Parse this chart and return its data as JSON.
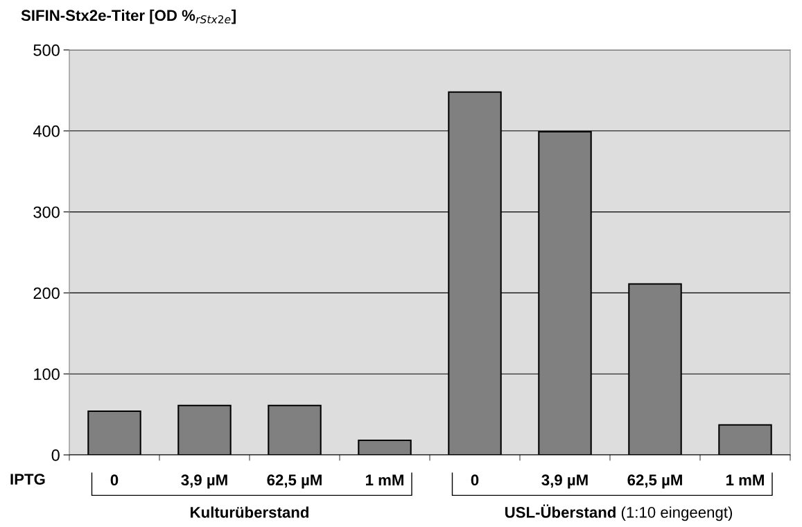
{
  "chart_data": {
    "type": "bar",
    "title": "SIFIN-Stx2e-Titer [OD %$_{rStx2e}$]",
    "xlabel": "IPTG",
    "categories": [
      "0",
      "3,9 µM",
      "62,5 µM",
      "1 mM",
      "0",
      "3,9 µM",
      "62,5 µM",
      "1 mM"
    ],
    "values": [
      54,
      61,
      61,
      18,
      448,
      399,
      211,
      37
    ],
    "color": "#808080",
    "ylim": [
      0,
      500
    ],
    "yticks": [
      0,
      100,
      200,
      300,
      400,
      500
    ],
    "grid": "y",
    "legend": false,
    "annotations": [
      "Kulturüberstand",
      "USL-Überstand (1:10 eingeengt)"
    ]
  }
}
